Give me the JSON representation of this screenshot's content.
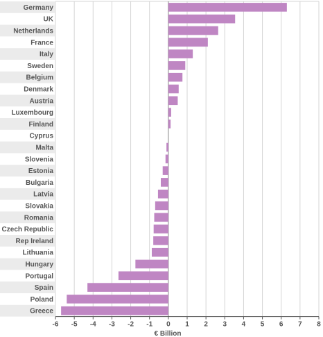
{
  "chart_data": {
    "type": "bar",
    "orientation": "horizontal",
    "categories": [
      "Germany",
      "UK",
      "Netherlands",
      "France",
      "Italy",
      "Sweden",
      "Belgium",
      "Denmark",
      "Austria",
      "Luxembourg",
      "Finland",
      "Cyprus",
      "Malta",
      "Slovenia",
      "Estonia",
      "Bulgaria",
      "Latvia",
      "Slovakia",
      "Romania",
      "Czech Republic",
      "Rep Ireland",
      "Lithuania",
      "Hungary",
      "Portugal",
      "Spain",
      "Poland",
      "Greece"
    ],
    "values": [
      6.3,
      3.55,
      2.65,
      2.1,
      1.3,
      0.9,
      0.75,
      0.55,
      0.5,
      0.15,
      0.12,
      0.0,
      -0.1,
      -0.15,
      -0.3,
      -0.4,
      -0.55,
      -0.7,
      -0.75,
      -0.78,
      -0.8,
      -0.88,
      -1.75,
      -2.65,
      -4.3,
      -5.4,
      -5.7
    ],
    "title": "",
    "xlabel": "€ Billion",
    "ylabel": "",
    "xlim": [
      -6,
      8
    ],
    "ticks": [
      -6,
      -5,
      -4,
      -3,
      -2,
      -1,
      0,
      1,
      2,
      3,
      4,
      5,
      6,
      7,
      8
    ],
    "grid": true,
    "colors": {
      "bar": "#bf86c3",
      "label_band": "#ebebeb",
      "grid": "#d4d4d4",
      "zero_line": "#888888",
      "axis": "#555555"
    }
  }
}
